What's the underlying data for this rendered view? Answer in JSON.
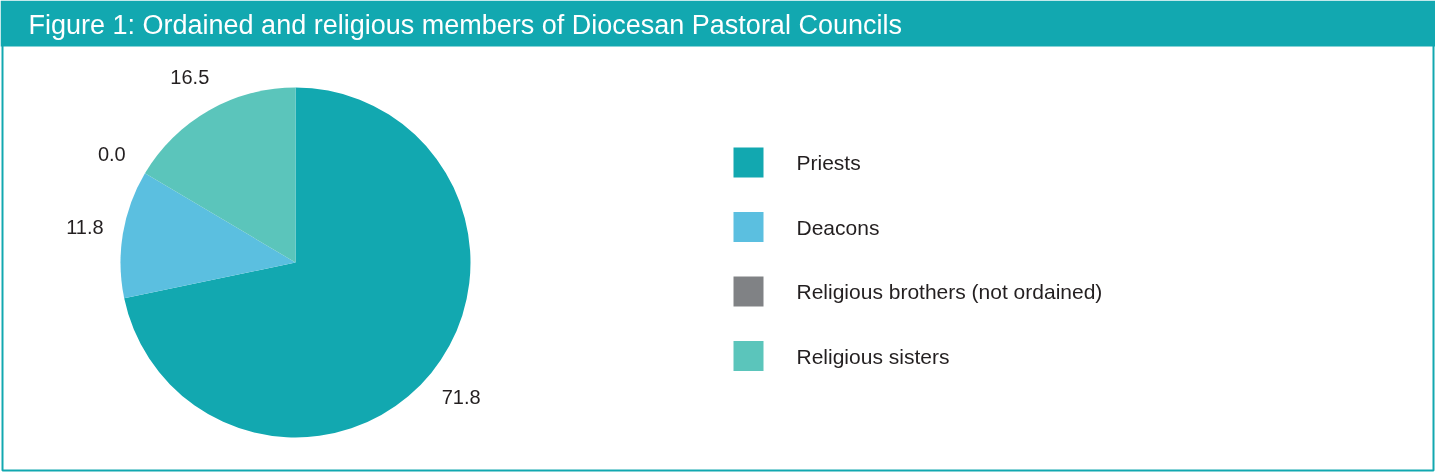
{
  "chart_data": {
    "type": "pie",
    "title": "Figure 1: Ordained and religious members of Diocesan Pastoral Councils",
    "categories": [
      "Priests",
      "Deacons",
      "Religious brothers (not ordained)",
      "Religious sisters"
    ],
    "values": [
      71.8,
      11.8,
      0.0,
      16.5
    ],
    "colors": [
      "#12a8b0",
      "#5bbfe0",
      "#808285",
      "#5bc5bb"
    ],
    "value_labels": [
      "71.8",
      "11.8",
      "0.0",
      "16.5"
    ],
    "legend": "right"
  }
}
